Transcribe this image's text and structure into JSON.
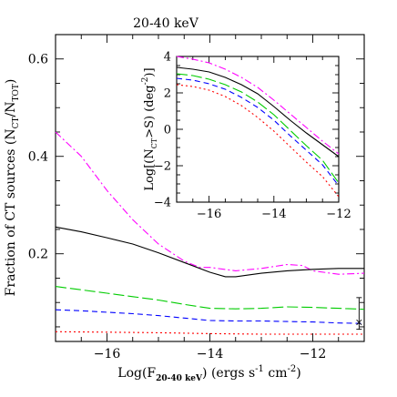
{
  "title": "20-40 keV",
  "chart_data": [
    {
      "type": "line",
      "xlabel_parts": {
        "pre": "Log(F",
        "sub": "20-40 keV",
        "post": ") (ergs s",
        "sup1": "-1",
        "mid": " cm",
        "sup2": "-2",
        "end": ")"
      },
      "ylabel_parts": {
        "pre": "Fraction of CT sources (N",
        "sub1": "CT",
        "mid": "/N",
        "sub2": "TOT",
        "end": ")"
      },
      "xlim": [
        -17,
        -11
      ],
      "ylim": [
        0.02,
        0.65
      ],
      "xticks": [
        -16,
        -14,
        -12
      ],
      "xticklabels": [
        "−16",
        "−14",
        "−12"
      ],
      "yticks": [
        0.2,
        0.4,
        0.6
      ],
      "yticklabels": [
        "0.2",
        "0.4",
        "0.6"
      ],
      "series": [
        {
          "color": "#ff00ff",
          "dash": "8,3,2,3",
          "x": [
            -17,
            -16.5,
            -16,
            -15.5,
            -15,
            -14.5,
            -14.2,
            -14,
            -13.5,
            -13,
            -12.5,
            -12.2,
            -12,
            -11.5,
            -11
          ],
          "y": [
            0.45,
            0.4,
            0.33,
            0.27,
            0.22,
            0.185,
            0.172,
            0.172,
            0.165,
            0.17,
            0.178,
            0.176,
            0.165,
            0.158,
            0.16
          ]
        },
        {
          "color": "#000000",
          "dash": "",
          "x": [
            -17,
            -16.5,
            -16,
            -15.5,
            -15,
            -14.5,
            -14,
            -13.7,
            -13.5,
            -13,
            -12.5,
            -12,
            -11.5,
            -11
          ],
          "y": [
            0.255,
            0.245,
            0.233,
            0.22,
            0.202,
            0.182,
            0.162,
            0.153,
            0.153,
            0.16,
            0.165,
            0.168,
            0.17,
            0.17
          ]
        },
        {
          "color": "#00cc00",
          "dash": "12,4",
          "x": [
            -17,
            -16.5,
            -16,
            -15.5,
            -15,
            -14.5,
            -14,
            -13.5,
            -13,
            -12.5,
            -12,
            -11.5,
            -11
          ],
          "y": [
            0.133,
            0.126,
            0.119,
            0.112,
            0.105,
            0.096,
            0.088,
            0.087,
            0.088,
            0.091,
            0.09,
            0.088,
            0.086
          ]
        },
        {
          "color": "#0000ff",
          "dash": "6,4",
          "x": [
            -17,
            -16.5,
            -16,
            -15.5,
            -15,
            -14.5,
            -14,
            -13.5,
            -13,
            -12.5,
            -12,
            -11.5,
            -11
          ],
          "y": [
            0.085,
            0.083,
            0.08,
            0.077,
            0.073,
            0.068,
            0.063,
            0.062,
            0.062,
            0.061,
            0.06,
            0.058,
            0.057
          ]
        },
        {
          "color": "#ff0000",
          "dash": "2,3",
          "x": [
            -17,
            -16,
            -15,
            -14,
            -13,
            -12,
            -11
          ],
          "y": [
            0.04,
            0.039,
            0.038,
            0.036,
            0.035,
            0.035,
            0.035
          ]
        }
      ],
      "errorbar": {
        "x": -11.1,
        "y": 0.075,
        "low": 0.045,
        "high": 0.11
      },
      "marker": {
        "x": -11.1,
        "y": 0.06,
        "symbol": "×"
      }
    },
    {
      "type": "line",
      "xlim": [
        -17,
        -12
      ],
      "ylim": [
        -4,
        4
      ],
      "xticks": [
        -16,
        -14,
        -12
      ],
      "xticklabels": [
        "−16",
        "−14",
        "−12"
      ],
      "yticks": [
        -4,
        -2,
        0,
        2,
        4
      ],
      "yticklabels": [
        "−4",
        "−2",
        "0",
        "2",
        "4"
      ],
      "ylabel_parts": {
        "pre": "Log[(N",
        "sub1": "CT",
        "mid": ">S) (deg",
        "sup": "-2",
        "end": ")]"
      },
      "series": [
        {
          "color": "#ff00ff",
          "dash": "8,3,2,3",
          "x": [
            -17,
            -16.5,
            -16,
            -15.5,
            -15,
            -14.5,
            -14,
            -13.5,
            -13,
            -12.5,
            -12
          ],
          "y": [
            4.0,
            3.85,
            3.65,
            3.3,
            2.85,
            2.3,
            1.6,
            0.85,
            0.1,
            -0.65,
            -1.35
          ]
        },
        {
          "color": "#000000",
          "dash": "",
          "x": [
            -17,
            -16.5,
            -16,
            -15.5,
            -15,
            -14.5,
            -14,
            -13.5,
            -13,
            -12.5,
            -12
          ],
          "y": [
            3.4,
            3.3,
            3.15,
            2.85,
            2.45,
            1.95,
            1.25,
            0.5,
            -0.2,
            -0.85,
            -1.5
          ]
        },
        {
          "color": "#00cc00",
          "dash": "12,4",
          "x": [
            -17,
            -16.5,
            -16,
            -15.5,
            -15,
            -14.5,
            -14,
            -13.5,
            -13,
            -12.5,
            -12
          ],
          "y": [
            3.05,
            2.95,
            2.75,
            2.45,
            2.05,
            1.5,
            0.8,
            -0.05,
            -0.9,
            -1.7,
            -2.95
          ]
        },
        {
          "color": "#0000ff",
          "dash": "6,4",
          "x": [
            -17,
            -16.5,
            -16,
            -15.5,
            -15,
            -14.5,
            -14,
            -13.5,
            -13,
            -12.5,
            -12
          ],
          "y": [
            2.8,
            2.7,
            2.5,
            2.2,
            1.75,
            1.2,
            0.5,
            -0.35,
            -1.15,
            -1.95,
            -3.1
          ]
        },
        {
          "color": "#ff0000",
          "dash": "2,3",
          "x": [
            -17,
            -16.5,
            -16,
            -15.5,
            -15,
            -14.5,
            -14,
            -13.5,
            -13,
            -12.5,
            -12
          ],
          "y": [
            2.45,
            2.35,
            2.15,
            1.8,
            1.3,
            0.65,
            -0.1,
            -0.95,
            -1.8,
            -2.6,
            -3.7
          ]
        }
      ]
    }
  ]
}
